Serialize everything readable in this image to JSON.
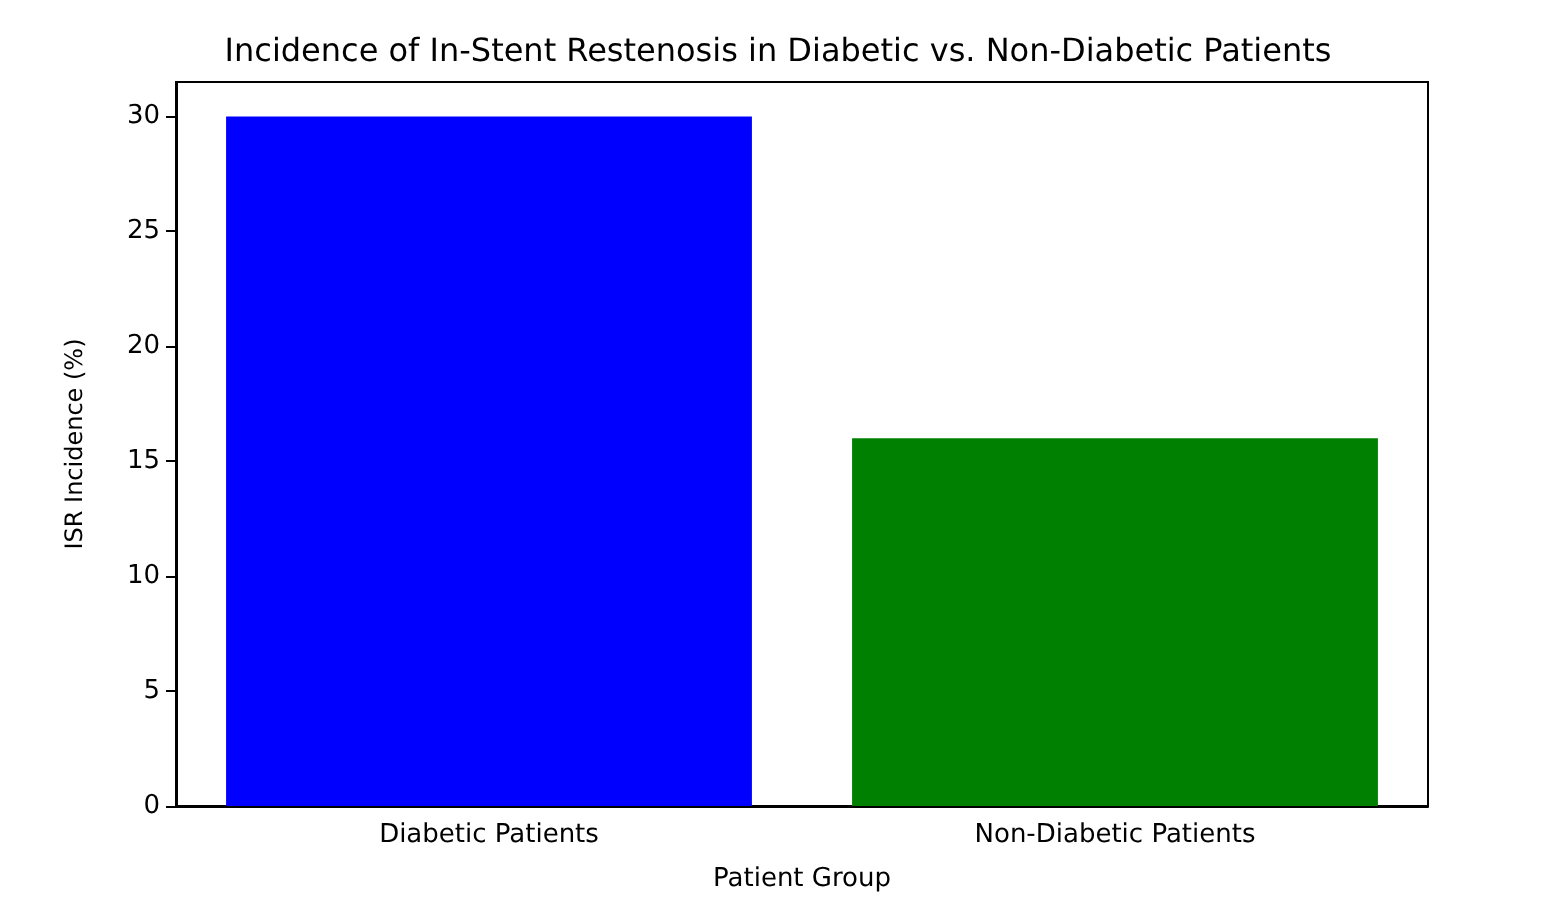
{
  "chart_data": {
    "type": "bar",
    "title": "Incidence of In-Stent Restenosis in Diabetic vs. Non-Diabetic Patients",
    "xlabel": "Patient Group",
    "ylabel": "ISR Incidence (%)",
    "categories": [
      "Diabetic Patients",
      "Non-Diabetic Patients"
    ],
    "values": [
      30,
      16
    ],
    "colors": [
      "#0000ff",
      "#008000"
    ],
    "ylim": [
      0,
      31.5
    ],
    "yticks": [
      0,
      5,
      10,
      15,
      20,
      25,
      30
    ],
    "grid": false
  }
}
